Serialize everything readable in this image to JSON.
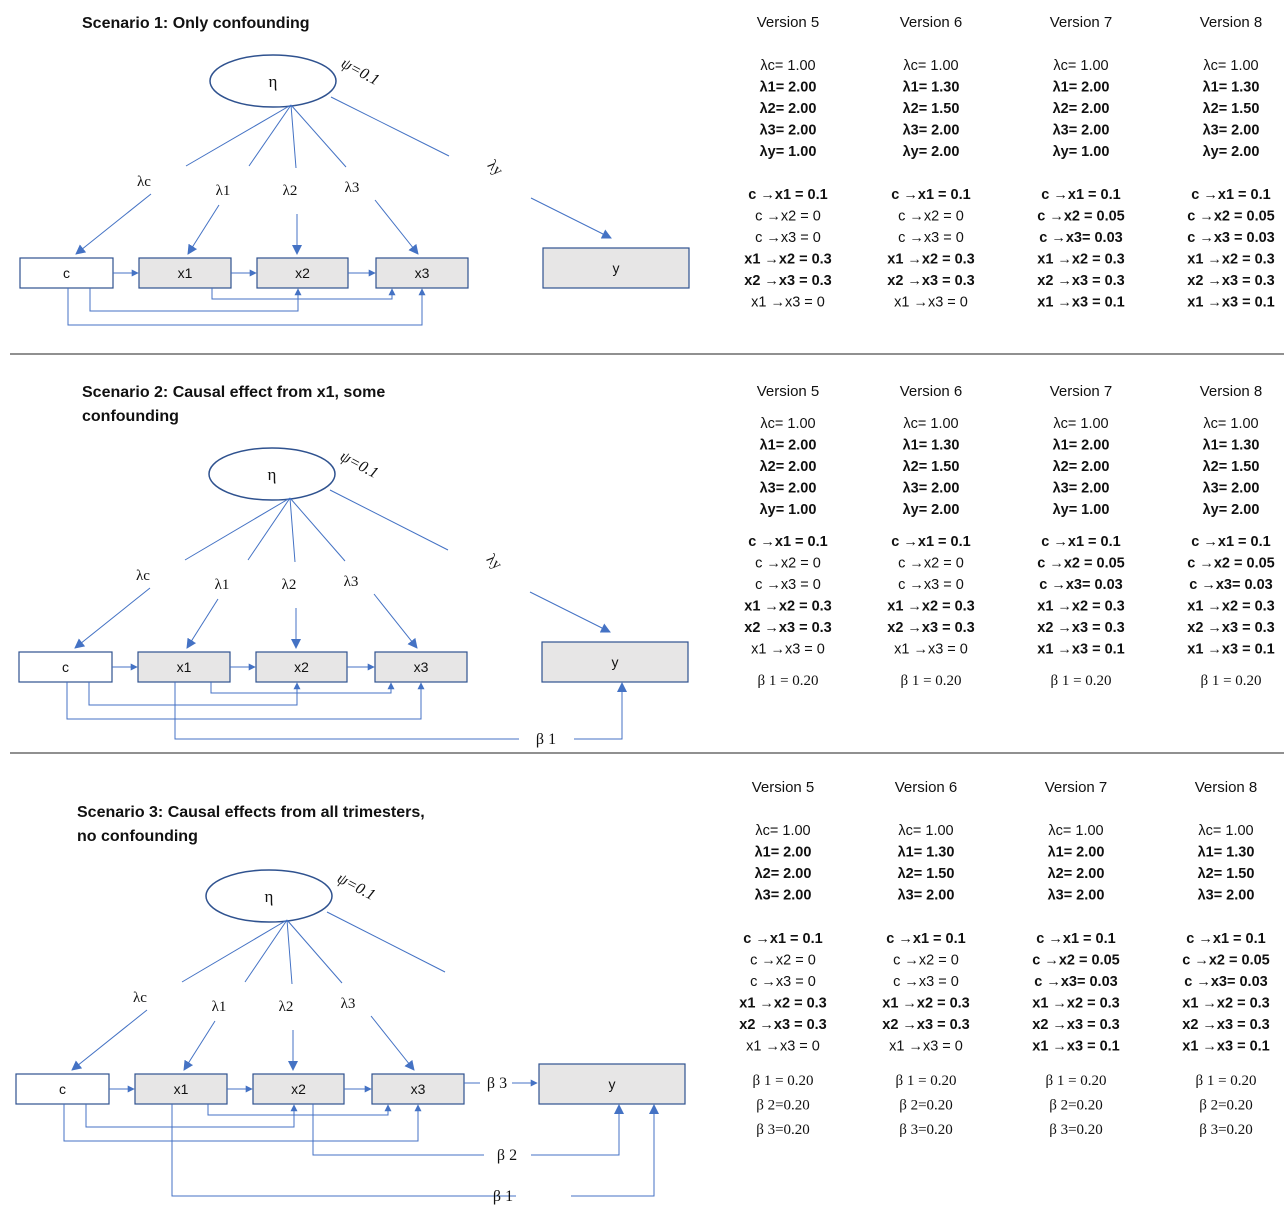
{
  "scenarios": [
    {
      "title": [
        "Scenario 1: Only confounding"
      ],
      "betas": [],
      "versions": [
        {
          "header": "Version 5",
          "loadings": [
            {
              "t": "λc= 1.00",
              "b": false
            },
            {
              "t": "λ1= 2.00",
              "b": true
            },
            {
              "t": "λ2= 2.00",
              "b": true
            },
            {
              "t": "λ3= 2.00",
              "b": true
            },
            {
              "t": "λy= 1.00",
              "b": true
            }
          ],
          "paths": [
            {
              "t": "c →x1 = 0.1",
              "b": true
            },
            {
              "t": "c →x2 = 0",
              "b": false
            },
            {
              "t": "c →x3 = 0",
              "b": false
            },
            {
              "t": "x1 →x2 = 0.3",
              "b": true
            },
            {
              "t": "x2 →x3 = 0.3",
              "b": true
            },
            {
              "t": "x1 →x3 = 0",
              "b": false
            }
          ],
          "betas": []
        },
        {
          "header": "Version 6",
          "loadings": [
            {
              "t": "λc= 1.00",
              "b": false
            },
            {
              "t": "λ1= 1.30",
              "b": true
            },
            {
              "t": "λ2= 1.50",
              "b": true
            },
            {
              "t": "λ3= 2.00",
              "b": true
            },
            {
              "t": "λy= 2.00",
              "b": true
            }
          ],
          "paths": [
            {
              "t": "c →x1 = 0.1",
              "b": true
            },
            {
              "t": "c →x2 = 0",
              "b": false
            },
            {
              "t": "c →x3 = 0",
              "b": false
            },
            {
              "t": "x1 →x2 = 0.3",
              "b": true
            },
            {
              "t": "x2 →x3 = 0.3",
              "b": true
            },
            {
              "t": "x1 →x3 = 0",
              "b": false
            }
          ],
          "betas": []
        },
        {
          "header": "Version 7",
          "loadings": [
            {
              "t": "λc= 1.00",
              "b": false
            },
            {
              "t": "λ1= 2.00",
              "b": true
            },
            {
              "t": "λ2= 2.00",
              "b": true
            },
            {
              "t": "λ3= 2.00",
              "b": true
            },
            {
              "t": "λy= 1.00",
              "b": true
            }
          ],
          "paths": [
            {
              "t": "c →x1 = 0.1",
              "b": true
            },
            {
              "t": "c →x2 = 0.05",
              "b": true
            },
            {
              "t": "c →x3= 0.03",
              "b": true
            },
            {
              "t": "x1 →x2 = 0.3",
              "b": true
            },
            {
              "t": "x2 →x3 = 0.3",
              "b": true
            },
            {
              "t": "x1 →x3 = 0.1",
              "b": true
            }
          ],
          "betas": []
        },
        {
          "header": "Version 8",
          "loadings": [
            {
              "t": "λc= 1.00",
              "b": false
            },
            {
              "t": "λ1= 1.30",
              "b": true
            },
            {
              "t": "λ2= 1.50",
              "b": true
            },
            {
              "t": "λ3= 2.00",
              "b": true
            },
            {
              "t": "λy= 2.00",
              "b": true
            }
          ],
          "paths": [
            {
              "t": "c →x1 = 0.1",
              "b": true
            },
            {
              "t": "c →x2 = 0.05",
              "b": true
            },
            {
              "t": "c →x3 = 0.03",
              "b": true
            },
            {
              "t": "x1 →x2 = 0.3",
              "b": true
            },
            {
              "t": "x2 →x3 = 0.3",
              "b": true
            },
            {
              "t": "x1 →x3 = 0.1",
              "b": true
            }
          ],
          "betas": []
        }
      ]
    },
    {
      "title": [
        "Scenario 2: Causal effect from x1, some",
        "confounding"
      ],
      "betas": [
        "β 1"
      ],
      "versions": [
        {
          "header": "Version 5",
          "loadings": [
            {
              "t": "λc= 1.00",
              "b": false
            },
            {
              "t": "λ1= 2.00",
              "b": true
            },
            {
              "t": "λ2= 2.00",
              "b": true
            },
            {
              "t": "λ3= 2.00",
              "b": true
            },
            {
              "t": "λy= 1.00",
              "b": true
            }
          ],
          "paths": [
            {
              "t": "c →x1 = 0.1",
              "b": true
            },
            {
              "t": "c →x2 = 0",
              "b": false
            },
            {
              "t": "c →x3 = 0",
              "b": false
            },
            {
              "t": "x1 →x2 = 0.3",
              "b": true
            },
            {
              "t": "x2 →x3 = 0.3",
              "b": true
            },
            {
              "t": "x1 →x3 = 0",
              "b": false
            }
          ],
          "betas": [
            "β 1 = 0.20"
          ]
        },
        {
          "header": "Version 6",
          "loadings": [
            {
              "t": "λc= 1.00",
              "b": false
            },
            {
              "t": "λ1= 1.30",
              "b": true
            },
            {
              "t": "λ2= 1.50",
              "b": true
            },
            {
              "t": "λ3= 2.00",
              "b": true
            },
            {
              "t": "λy= 2.00",
              "b": true
            }
          ],
          "paths": [
            {
              "t": "c →x1 = 0.1",
              "b": true
            },
            {
              "t": "c →x2 = 0",
              "b": false
            },
            {
              "t": "c →x3 = 0",
              "b": false
            },
            {
              "t": "x1 →x2 = 0.3",
              "b": true
            },
            {
              "t": "x2 →x3 = 0.3",
              "b": true
            },
            {
              "t": "x1 →x3 = 0",
              "b": false
            }
          ],
          "betas": [
            "β 1 = 0.20"
          ]
        },
        {
          "header": "Version 7",
          "loadings": [
            {
              "t": "λc= 1.00",
              "b": false
            },
            {
              "t": "λ1= 2.00",
              "b": true
            },
            {
              "t": "λ2= 2.00",
              "b": true
            },
            {
              "t": "λ3= 2.00",
              "b": true
            },
            {
              "t": "λy= 1.00",
              "b": true
            }
          ],
          "paths": [
            {
              "t": "c →x1 = 0.1",
              "b": true
            },
            {
              "t": "c →x2 = 0.05",
              "b": true
            },
            {
              "t": "c →x3= 0.03",
              "b": true
            },
            {
              "t": "x1 →x2 = 0.3",
              "b": true
            },
            {
              "t": "x2 →x3 = 0.3",
              "b": true
            },
            {
              "t": "x1 →x3 = 0.1",
              "b": true
            }
          ],
          "betas": [
            "β 1 = 0.20"
          ]
        },
        {
          "header": "Version 8",
          "loadings": [
            {
              "t": "λc= 1.00",
              "b": false
            },
            {
              "t": "λ1= 1.30",
              "b": true
            },
            {
              "t": "λ2= 1.50",
              "b": true
            },
            {
              "t": "λ3= 2.00",
              "b": true
            },
            {
              "t": "λy= 2.00",
              "b": true
            }
          ],
          "paths": [
            {
              "t": "c →x1 = 0.1",
              "b": true
            },
            {
              "t": "c →x2 = 0.05",
              "b": true
            },
            {
              "t": "c →x3= 0.03",
              "b": true
            },
            {
              "t": "x1 →x2 = 0.3",
              "b": true
            },
            {
              "t": "x2 →x3 = 0.3",
              "b": true
            },
            {
              "t": "x1 →x3 = 0.1",
              "b": true
            }
          ],
          "betas": [
            "β 1 = 0.20"
          ]
        }
      ]
    },
    {
      "title": [
        "Scenario 3: Causal effects from all trimesters,",
        "no confounding"
      ],
      "betas": [
        "β 1",
        "β 2",
        "β 3"
      ],
      "versions": [
        {
          "header": "Version 5",
          "loadings": [
            {
              "t": "λc= 1.00",
              "b": false
            },
            {
              "t": "λ1= 2.00",
              "b": true
            },
            {
              "t": "λ2= 2.00",
              "b": true
            },
            {
              "t": "λ3= 2.00",
              "b": true
            }
          ],
          "paths": [
            {
              "t": "c →x1 = 0.1",
              "b": true
            },
            {
              "t": "c →x2 = 0",
              "b": false
            },
            {
              "t": "c →x3 = 0",
              "b": false
            },
            {
              "t": "x1 →x2 = 0.3",
              "b": true
            },
            {
              "t": "x2 →x3 = 0.3",
              "b": true
            },
            {
              "t": "x1 →x3 = 0",
              "b": false
            }
          ],
          "betas": [
            "β 1 = 0.20",
            "β 2=0.20",
            "β 3=0.20"
          ]
        },
        {
          "header": "Version 6",
          "loadings": [
            {
              "t": "λc= 1.00",
              "b": false
            },
            {
              "t": "λ1= 1.30",
              "b": true
            },
            {
              "t": "λ2= 1.50",
              "b": true
            },
            {
              "t": "λ3= 2.00",
              "b": true
            }
          ],
          "paths": [
            {
              "t": "c →x1 = 0.1",
              "b": true
            },
            {
              "t": "c →x2 = 0",
              "b": false
            },
            {
              "t": "c →x3 = 0",
              "b": false
            },
            {
              "t": "x1 →x2 = 0.3",
              "b": true
            },
            {
              "t": "x2 →x3 = 0.3",
              "b": true
            },
            {
              "t": "x1 →x3 = 0",
              "b": false
            }
          ],
          "betas": [
            "β 1 = 0.20",
            "β 2=0.20",
            "β 3=0.20"
          ]
        },
        {
          "header": "Version 7",
          "loadings": [
            {
              "t": "λc= 1.00",
              "b": false
            },
            {
              "t": "λ1= 2.00",
              "b": true
            },
            {
              "t": "λ2= 2.00",
              "b": true
            },
            {
              "t": "λ3= 2.00",
              "b": true
            }
          ],
          "paths": [
            {
              "t": "c →x1 = 0.1",
              "b": true
            },
            {
              "t": "c →x2 = 0.05",
              "b": true
            },
            {
              "t": "c →x3= 0.03",
              "b": true
            },
            {
              "t": "x1 →x2 = 0.3",
              "b": true
            },
            {
              "t": "x2 →x3 = 0.3",
              "b": true
            },
            {
              "t": "x1 →x3 = 0.1",
              "b": true
            }
          ],
          "betas": [
            "β 1 = 0.20",
            "β 2=0.20",
            "β 3=0.20"
          ]
        },
        {
          "header": "Version 8",
          "loadings": [
            {
              "t": "λc= 1.00",
              "b": false
            },
            {
              "t": "λ1= 1.30",
              "b": true
            },
            {
              "t": "λ2= 1.50",
              "b": true
            },
            {
              "t": "λ3= 2.00",
              "b": true
            }
          ],
          "paths": [
            {
              "t": "c →x1 = 0.1",
              "b": true
            },
            {
              "t": "c →x2 = 0.05",
              "b": true
            },
            {
              "t": "c →x3= 0.03",
              "b": true
            },
            {
              "t": "x1 →x2 = 0.3",
              "b": true
            },
            {
              "t": "x2 →x3 = 0.3",
              "b": true
            },
            {
              "t": "x1 →x3 = 0.1",
              "b": true
            }
          ],
          "betas": [
            "β 1 = 0.20",
            "β 2=0.20",
            "β 3=0.20"
          ]
        }
      ]
    }
  ],
  "labels": {
    "eta": "η",
    "psi": "ψ=0.1",
    "lambda_c": "λc",
    "lambda_1": "λ1",
    "lambda_2": "λ2",
    "lambda_3": "λ3",
    "lambda_y": "λy",
    "c": "c",
    "x1": "x1",
    "x2": "x2",
    "x3": "x3",
    "y": "y"
  },
  "colors": {
    "line": "#4472c4",
    "box_border": "#2f528f",
    "box_fill_observed": "#e7e6e6",
    "box_fill_c": "#ffffff"
  }
}
